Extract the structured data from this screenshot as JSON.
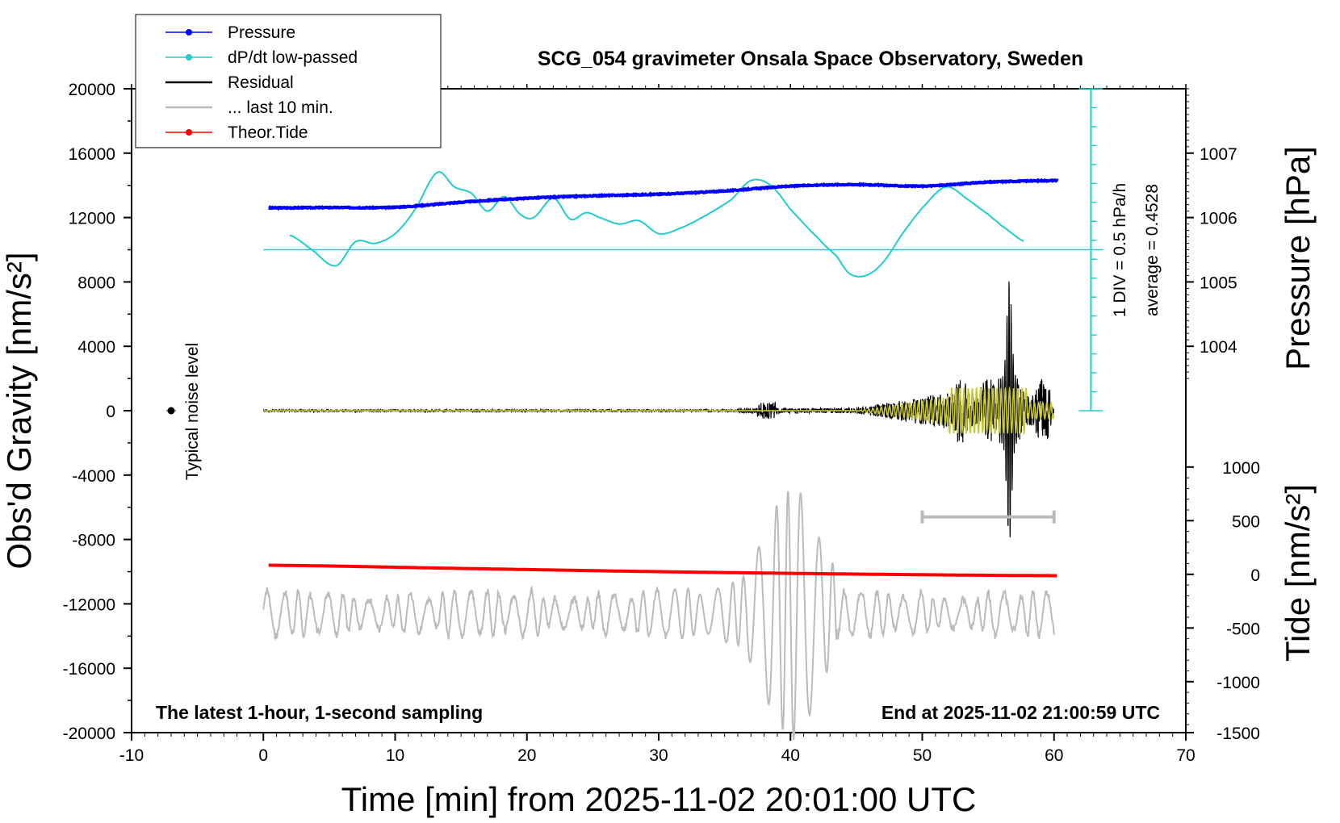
{
  "chart_data": {
    "type": "line",
    "title": "SCG_054 gravimeter Onsala Space Observatory, Sweden",
    "xlabel": "Time [min] from 2025-11-02 20:01:00 UTC",
    "ylabel_left": "Obs'd Gravity [nm/s²]",
    "ylabel_right_top": "Pressure [hPa]",
    "ylabel_right_bottom": "Tide [nm/s²]",
    "xlim": [
      -10,
      70
    ],
    "ylim_left": [
      -20000,
      20000
    ],
    "x_ticks": [
      "-10",
      "0",
      "10",
      "20",
      "30",
      "40",
      "50",
      "60",
      "70"
    ],
    "y_left_ticks": [
      "20000",
      "16000",
      "12000",
      "8000",
      "4000",
      "0",
      "-4000",
      "-8000",
      "-12000",
      "-16000",
      "-20000"
    ],
    "pressure_axis": {
      "ticks": [
        "1007",
        "1006",
        "1005",
        "1004"
      ],
      "values": [
        1007,
        1006,
        1005,
        1004
      ],
      "gravity_equiv": [
        16000,
        12000,
        8000,
        4000
      ]
    },
    "tide_axis": {
      "ticks": [
        "1000",
        "500",
        "0",
        "-500",
        "-1000",
        "-1500"
      ],
      "values": [
        1000,
        500,
        0,
        -500,
        -1000,
        -1500
      ],
      "gravity_equiv": [
        -3500,
        -6833,
        -10167,
        -13500,
        -16833,
        -20000
      ]
    },
    "ddt_scale": {
      "label": "1 DIV = 0.5 hPa/h",
      "average_label": "average = 0.4528",
      "base_gravity": 0,
      "top_gravity": 20000,
      "divisions": 17
    },
    "noise_label": "Typical noise level",
    "noise_x": -7,
    "bottom_left_note": "The latest 1-hour, 1-second sampling",
    "bottom_right_note": "End at 2025-11-02 21:00:59 UTC",
    "legend": {
      "placement": "top-left",
      "entries": [
        "Pressure",
        "dP/dt low-passed",
        "Residual",
        "... last 10 min.",
        "Theor.Tide"
      ]
    },
    "colors": {
      "pressure": "#0000ff",
      "dpdt": "#22cccc",
      "residual": "#000000",
      "residual_filtered": "#c8c832",
      "last10": "#bbbbbb",
      "tide": "#ff0000"
    },
    "series": {
      "pressure": {
        "name": "Pressure",
        "x": [
          0.4,
          5,
          10,
          15,
          20,
          25,
          30,
          35,
          40,
          45,
          50,
          55,
          60.3
        ],
        "y": [
          12600,
          12620,
          12640,
          12950,
          13200,
          13350,
          13450,
          13650,
          13950,
          14050,
          13950,
          14200,
          14300
        ]
      },
      "dpdt": {
        "name": "dP/dt low-passed",
        "baseline_y": 10000,
        "x": [
          2,
          3.5,
          5.5,
          7,
          8.5,
          10,
          11.5,
          13.2,
          14.5,
          15.8,
          17,
          18.3,
          19.5,
          20.5,
          22,
          23.3,
          24.5,
          25.5,
          27,
          28.5,
          30,
          31.5,
          33.5,
          35.5,
          37,
          38.5,
          40,
          42,
          43.5,
          44.5,
          45.7,
          47,
          48.5,
          50,
          51.8,
          53.5,
          55,
          56,
          57.8
        ],
        "y": [
          10900,
          10100,
          9000,
          10500,
          10400,
          11000,
          12500,
          14800,
          13900,
          13500,
          12400,
          13300,
          12200,
          12000,
          13200,
          11900,
          12300,
          12000,
          11600,
          11800,
          11000,
          11300,
          12100,
          13100,
          14300,
          14000,
          12500,
          10800,
          9600,
          8500,
          8400,
          9200,
          11000,
          12600,
          13900,
          13100,
          12200,
          11500,
          10500
        ]
      },
      "residual": {
        "name": "Residual",
        "x_start": 0,
        "x_end": 60,
        "peak_max": 8600,
        "peak_min": -8300,
        "peak_x": 56.6
      },
      "last10": {
        "name": "... last 10 min.",
        "x_start": 0,
        "x_end": 60,
        "range_bar": [
          50,
          60
        ],
        "range_bar_y": -6600
      },
      "tide": {
        "name": "Theor.Tide",
        "x": [
          0.4,
          15,
          30,
          45,
          60.3
        ],
        "y": [
          -9600,
          -9800,
          -10000,
          -10150,
          -10250
        ]
      }
    }
  }
}
